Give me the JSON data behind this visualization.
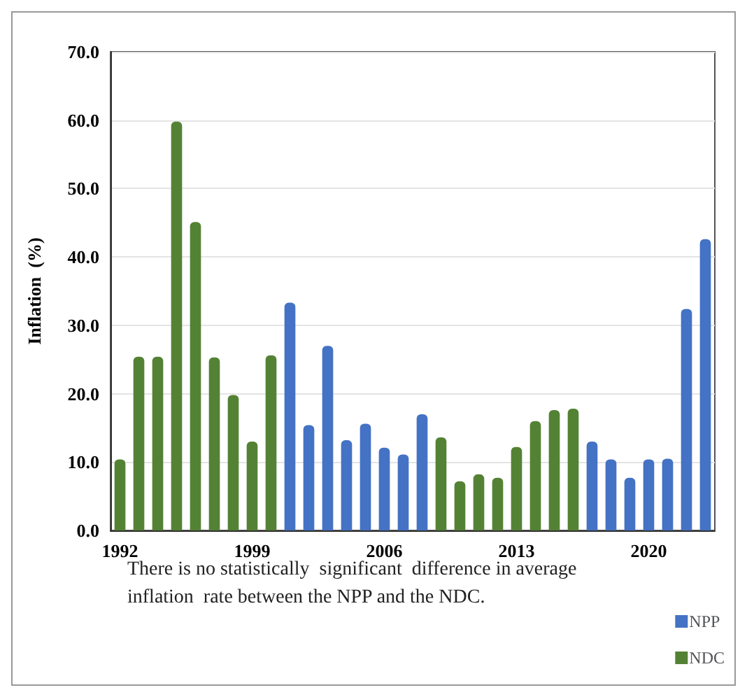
{
  "chart_data": {
    "type": "bar",
    "ylabel": "Inflation  (%)",
    "categories": [
      "1992",
      null,
      null,
      null,
      null,
      null,
      null,
      "1999",
      null,
      null,
      null,
      null,
      null,
      null,
      "2006",
      null,
      null,
      null,
      null,
      null,
      null,
      "2013",
      null,
      null,
      null,
      null,
      null,
      null,
      "2020",
      null,
      null,
      null
    ],
    "series": [
      {
        "name": "NPP",
        "color": "#4472c4",
        "values": [
          null,
          null,
          null,
          null,
          null,
          null,
          null,
          null,
          null,
          33.3,
          15.4,
          27.0,
          13.2,
          15.6,
          12.1,
          11.1,
          17.0,
          null,
          null,
          null,
          null,
          null,
          null,
          null,
          null,
          13.0,
          10.4,
          7.7,
          10.4,
          10.5,
          32.4,
          42.6
        ]
      },
      {
        "name": "NDC",
        "color": "#548235",
        "values": [
          10.4,
          25.4,
          25.4,
          59.8,
          45.1,
          25.3,
          19.8,
          13.0,
          25.6,
          null,
          null,
          null,
          null,
          null,
          null,
          null,
          null,
          13.6,
          7.2,
          8.2,
          7.7,
          12.2,
          16.0,
          17.6,
          17.8,
          null,
          null,
          null,
          null,
          null,
          null,
          null
        ]
      }
    ],
    "ylim": [
      0,
      70
    ],
    "yticks": [
      {
        "value": 0,
        "label": "0.0"
      },
      {
        "value": 10,
        "label": "10.0"
      },
      {
        "value": 20,
        "label": "20.0"
      },
      {
        "value": 30,
        "label": "30.0"
      },
      {
        "value": 40,
        "label": "40.0"
      },
      {
        "value": 50,
        "label": "50.0"
      },
      {
        "value": 60,
        "label": "60.0"
      },
      {
        "value": 70,
        "label": "70.0"
      }
    ],
    "grid": "y",
    "legend": "bottom right",
    "annotations": [
      "There is no statistically  significant  difference in average inflation  rate between the NPP and the NDC."
    ]
  }
}
